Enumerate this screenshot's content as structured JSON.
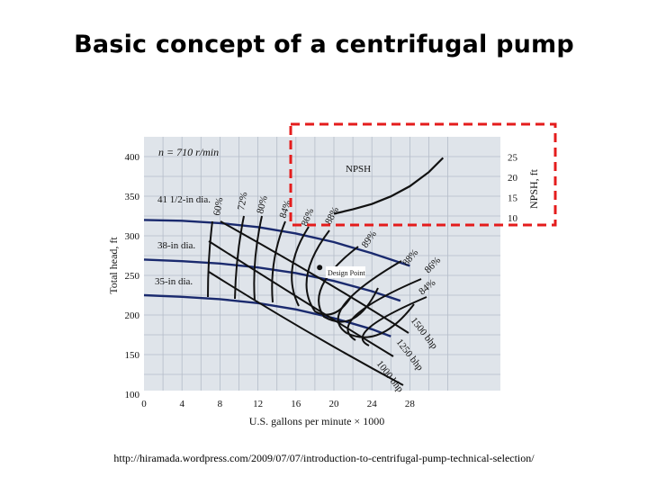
{
  "slide": {
    "title": "Basic concept of a centrifugal pump",
    "source_url": "http://hiramada.wordpress.com/2009/07/07/introduction-to-centrifugal-pump-technical-selection/"
  },
  "chart_data": {
    "type": "line",
    "speed_label": "n = 710 r/min",
    "xlabel": "U.S. gallons per minute × 1000",
    "ylabel": "Total head, ft",
    "y2label": "NPSH, ft",
    "xlim": [
      0,
      32
    ],
    "ylim": [
      100,
      410
    ],
    "y2lim": [
      10,
      25
    ],
    "x_ticks": [
      0,
      4,
      8,
      12,
      16,
      20,
      24,
      28
    ],
    "y_ticks": [
      100,
      150,
      200,
      250,
      300,
      350,
      400
    ],
    "y2_ticks": [
      10,
      15,
      20,
      25
    ],
    "grid": true,
    "background_color": "#dfe4ea",
    "head_curve_color": "#1a2a6e",
    "highlight_box_color": "#e41c1c",
    "head_curves": [
      {
        "label": "41 1/2-in dia.",
        "points": [
          [
            0,
            320
          ],
          [
            4,
            319
          ],
          [
            8,
            316
          ],
          [
            12,
            311
          ],
          [
            16,
            303
          ],
          [
            20,
            292
          ],
          [
            24,
            278
          ],
          [
            28,
            262
          ]
        ]
      },
      {
        "label": "38-in dia.",
        "points": [
          [
            0,
            270
          ],
          [
            4,
            268
          ],
          [
            8,
            265
          ],
          [
            12,
            260
          ],
          [
            16,
            253
          ],
          [
            20,
            243
          ],
          [
            24,
            230
          ],
          [
            27,
            218
          ]
        ]
      },
      {
        "label": "35-in dia.",
        "points": [
          [
            0,
            225
          ],
          [
            4,
            223
          ],
          [
            8,
            220
          ],
          [
            12,
            215
          ],
          [
            16,
            207
          ],
          [
            20,
            196
          ],
          [
            24,
            182
          ],
          [
            26,
            173
          ]
        ]
      }
    ],
    "npsh_curve": {
      "label": "NPSH",
      "points": [
        [
          20,
          11.0
        ],
        [
          22,
          12.1
        ],
        [
          24,
          13.4
        ],
        [
          26,
          15.3
        ],
        [
          28,
          17.8
        ],
        [
          30,
          21.3
        ],
        [
          31.5,
          24.8
        ]
      ]
    },
    "efficiency_labels": [
      "60%",
      "72%",
      "80%",
      "84%",
      "86%",
      "88%",
      "89%",
      "88%",
      "86%",
      "84%"
    ],
    "power_labels": [
      "1500 bhp",
      "1250 bhp",
      "1000 bhp"
    ],
    "annotation": "Design Point"
  }
}
